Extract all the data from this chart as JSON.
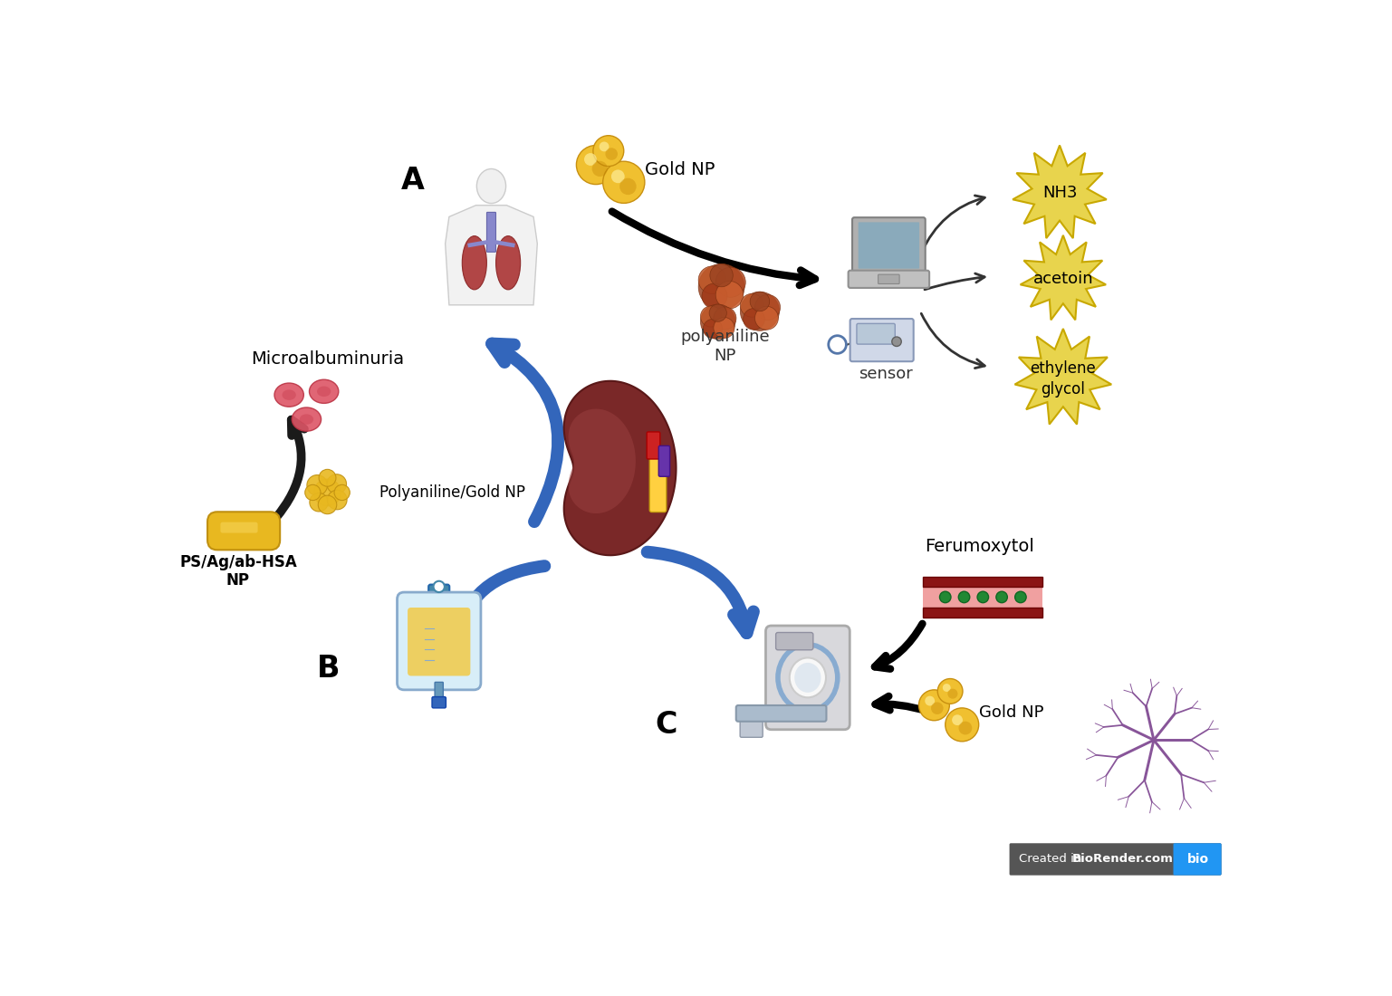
{
  "bg_color": "#ffffff",
  "figure_size": [
    15.37,
    11.0
  ],
  "dpi": 100,
  "label_A": "A",
  "label_B": "B",
  "label_C": "C",
  "text_gold_np_top": "Gold NP",
  "text_polyaniline_np": "polyaniline\nNP",
  "text_sensor": "sensor",
  "text_NH3": "NH3",
  "text_acetoin": "acetoin",
  "text_ethylene_glycol": "ethylene\nglycol",
  "text_microalbuminuria": "Microalbuminuria",
  "text_polyaniline_gold": "Polyaniline/Gold NP",
  "text_psag": "PS/Ag/ab-HSA\nNP",
  "text_ferumoxytol": "Ferumoxytol",
  "text_gold_np_bottom": "Gold NP",
  "gold_color": "#DAA520",
  "gold_color2": "#FFD700",
  "gold_dark": "#C8940A",
  "star_fill": "#E8D44D",
  "star_stroke": "#C8A800",
  "blue_arrow": "#2255AA",
  "black_col": "#111111",
  "kidney_dark": "#6B2020",
  "kidney_mid": "#8B3535",
  "bio_render_bg": "#555555",
  "bio_render_blue": "#2196F3"
}
